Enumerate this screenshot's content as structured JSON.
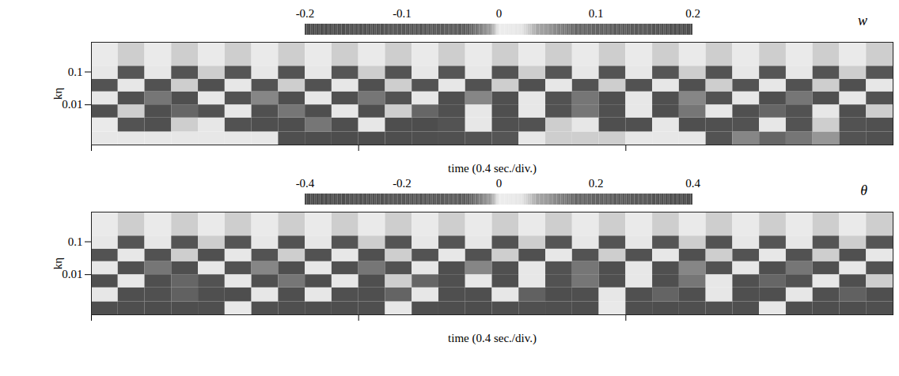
{
  "chart_data": [
    {
      "type": "heatmap",
      "title": "w",
      "x_label": "time (0.4 sec./div.)",
      "y_label": "kη",
      "xlim": [
        0,
        1.2
      ],
      "xticks": [
        0,
        0.4,
        0.8
      ],
      "ylim": [
        0.0006,
        0.8
      ],
      "yticks": [
        0.01,
        0.1
      ],
      "log": "y",
      "tick_labels": "y",
      "x_edges": [
        0,
        0.04,
        0.08,
        0.12,
        0.16,
        0.2,
        0.24,
        0.28,
        0.32,
        0.36,
        0.4,
        0.44,
        0.48,
        0.52,
        0.56,
        0.6,
        0.64,
        0.68,
        0.72,
        0.76,
        0.8,
        0.84,
        0.88,
        0.92,
        0.96,
        1,
        1.04,
        1.08,
        1.12,
        1.16,
        1.2
      ],
      "y_edges": [
        0.0006,
        0.0015,
        0.004,
        0.01,
        0.025,
        0.06,
        0.15,
        0.8
      ],
      "cells": [
        [
          0.02,
          0.02,
          0.02,
          0.02,
          0.02,
          0.02,
          0.02,
          -0.15,
          -0.16,
          -0.17,
          -0.17,
          -0.16,
          -0.15,
          -0.14,
          -0.12,
          -0.1,
          0.02,
          0.03,
          0.03,
          0.03,
          0.02,
          0.02,
          0.02,
          -0.12,
          0.06,
          0.08,
          0.07,
          0.05,
          -0.12,
          -0.14
        ],
        [
          0.01,
          -0.12,
          -0.14,
          0.03,
          0.02,
          -0.13,
          -0.15,
          -0.16,
          0.07,
          -0.15,
          0.02,
          -0.16,
          -0.17,
          -0.12,
          0.02,
          -0.14,
          -0.13,
          0.03,
          0.02,
          -0.15,
          -0.14,
          0.02,
          -0.15,
          -0.14,
          -0.13,
          0.02,
          -0.12,
          0.03,
          -0.13,
          -0.14
        ],
        [
          -0.14,
          0.03,
          -0.15,
          0.08,
          -0.13,
          0.02,
          -0.14,
          0.07,
          -0.16,
          0.02,
          -0.15,
          0.03,
          0.08,
          -0.14,
          0.02,
          -0.15,
          0.02,
          -0.13,
          0.07,
          -0.14,
          0.02,
          -0.15,
          0.07,
          0.02,
          -0.14,
          0.08,
          -0.13,
          0.02,
          -0.15,
          0.03
        ],
        [
          0.02,
          -0.14,
          0.07,
          -0.15,
          0.02,
          -0.13,
          0.06,
          -0.15,
          0.02,
          -0.14,
          0.07,
          -0.13,
          0.02,
          -0.15,
          0.06,
          -0.14,
          0.02,
          -0.13,
          0.07,
          -0.15,
          0.02,
          -0.14,
          0.06,
          -0.13,
          0.02,
          -0.15,
          0.07,
          -0.14,
          0.02,
          -0.13
        ],
        [
          -0.12,
          0.02,
          -0.13,
          0.03,
          -0.14,
          0.02,
          -0.12,
          0.03,
          -0.13,
          0.02,
          -0.14,
          0.03,
          -0.12,
          0.02,
          -0.13,
          0.03,
          -0.14,
          0.02,
          -0.12,
          0.03,
          -0.13,
          0.02,
          -0.14,
          0.03,
          -0.12,
          0.02,
          -0.13,
          0.03,
          -0.14,
          0.02
        ],
        [
          0.02,
          -0.1,
          0.02,
          -0.11,
          0.03,
          -0.1,
          0.02,
          -0.12,
          0.02,
          -0.1,
          0.03,
          -0.11,
          0.02,
          -0.1,
          0.02,
          -0.12,
          0.03,
          -0.1,
          0.02,
          -0.11,
          0.02,
          -0.1,
          0.03,
          -0.12,
          0.02,
          -0.1,
          0.02,
          -0.11,
          0.03,
          -0.1
        ],
        [
          0.01,
          0.03,
          0.01,
          0.03,
          0.01,
          0.03,
          0.01,
          0.03,
          0.01,
          0.03,
          0.01,
          0.03,
          0.01,
          0.03,
          0.01,
          0.03,
          0.01,
          0.03,
          0.01,
          0.03,
          0.01,
          0.03,
          0.01,
          0.03,
          0.01,
          0.03,
          0.01,
          0.03,
          0.01,
          0.03
        ]
      ],
      "colorbar_range": [
        -0.2,
        0.2
      ],
      "colorbar_ticks": [
        -0.2,
        -0.1,
        0,
        0.1,
        0.2
      ]
    },
    {
      "type": "heatmap",
      "title": "θ",
      "x_label": "time (0.4 sec./div.)",
      "y_label": "kη",
      "xlim": [
        0,
        1.2
      ],
      "xticks": [
        0,
        0.4,
        0.8
      ],
      "ylim": [
        0.0006,
        0.8
      ],
      "yticks": [
        0.01,
        0.1
      ],
      "log": "y",
      "tick_labels": "y",
      "x_edges": [
        0,
        0.04,
        0.08,
        0.12,
        0.16,
        0.2,
        0.24,
        0.28,
        0.32,
        0.36,
        0.4,
        0.44,
        0.48,
        0.52,
        0.56,
        0.6,
        0.64,
        0.68,
        0.72,
        0.76,
        0.8,
        0.84,
        0.88,
        0.92,
        0.96,
        1,
        1.04,
        1.08,
        1.12,
        1.16,
        1.2
      ],
      "y_edges": [
        0.0006,
        0.0015,
        0.004,
        0.01,
        0.025,
        0.06,
        0.15,
        0.8
      ],
      "cells": [
        [
          -0.3,
          -0.32,
          -0.34,
          -0.33,
          -0.3,
          0.03,
          -0.28,
          -0.3,
          -0.32,
          -0.33,
          -0.3,
          0.04,
          -0.3,
          -0.32,
          -0.34,
          -0.3,
          -0.28,
          -0.3,
          -0.32,
          0.03,
          -0.3,
          -0.32,
          -0.3,
          -0.28,
          -0.3,
          0.04,
          -0.3,
          -0.33,
          -0.32,
          -0.3
        ],
        [
          0.04,
          -0.3,
          -0.28,
          0.2,
          -0.3,
          -0.32,
          0.04,
          -0.3,
          0.04,
          -0.28,
          -0.3,
          0.18,
          0.04,
          -0.3,
          -0.3,
          0.04,
          0.2,
          -0.32,
          -0.3,
          0.04,
          -0.28,
          0.18,
          -0.3,
          0.04,
          -0.3,
          -0.3,
          0.04,
          -0.28,
          0.2,
          -0.3
        ],
        [
          -0.28,
          0.04,
          -0.3,
          0.16,
          -0.26,
          0.04,
          -0.28,
          0.14,
          -0.32,
          0.04,
          -0.3,
          0.06,
          0.16,
          -0.28,
          0.04,
          -0.3,
          0.04,
          -0.26,
          0.14,
          -0.28,
          0.04,
          -0.3,
          0.14,
          0.04,
          -0.28,
          0.16,
          -0.26,
          0.04,
          -0.3,
          0.06
        ],
        [
          0.04,
          -0.28,
          0.14,
          -0.3,
          0.04,
          -0.26,
          0.12,
          -0.3,
          0.04,
          -0.28,
          0.14,
          -0.26,
          0.04,
          -0.3,
          0.12,
          -0.28,
          0.04,
          -0.26,
          0.14,
          -0.3,
          0.04,
          -0.28,
          0.12,
          -0.26,
          0.04,
          -0.3,
          0.14,
          -0.28,
          0.04,
          -0.26
        ],
        [
          -0.24,
          0.04,
          -0.26,
          0.06,
          -0.28,
          0.04,
          -0.24,
          0.06,
          -0.26,
          0.04,
          -0.28,
          0.06,
          -0.24,
          0.04,
          -0.26,
          0.06,
          -0.28,
          0.04,
          -0.24,
          0.06,
          -0.26,
          0.04,
          -0.28,
          0.06,
          -0.24,
          0.04,
          -0.26,
          0.06,
          -0.28,
          0.04
        ],
        [
          0.04,
          -0.2,
          0.04,
          -0.22,
          0.06,
          -0.2,
          0.04,
          -0.24,
          0.04,
          -0.2,
          0.06,
          -0.22,
          0.04,
          -0.2,
          0.04,
          -0.24,
          0.06,
          -0.2,
          0.04,
          -0.22,
          0.04,
          -0.2,
          0.06,
          -0.24,
          0.04,
          -0.2,
          0.04,
          -0.22,
          0.06,
          -0.2
        ],
        [
          0.02,
          0.06,
          0.02,
          0.06,
          0.02,
          0.06,
          0.02,
          0.06,
          0.02,
          0.06,
          0.02,
          0.06,
          0.02,
          0.06,
          0.02,
          0.06,
          0.02,
          0.06,
          0.02,
          0.06,
          0.02,
          0.06,
          0.02,
          0.06,
          0.02,
          0.06,
          0.02,
          0.06,
          0.02,
          0.06
        ]
      ],
      "colorbar_range": [
        -0.4,
        0.4
      ],
      "colorbar_ticks": [
        -0.4,
        -0.2,
        0,
        0.2,
        0.4
      ]
    }
  ]
}
